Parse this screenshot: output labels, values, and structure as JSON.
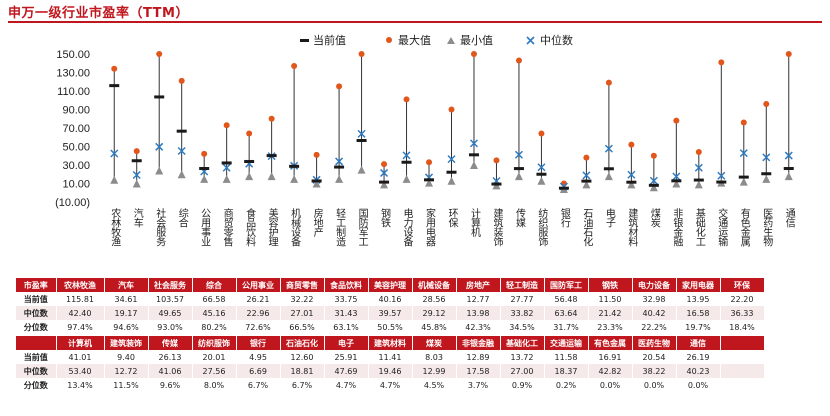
{
  "title": "申万一级行业市盈率（TTM）",
  "chart_data": {
    "type": "scatter",
    "title": "申万一级行业市盈率（TTM）",
    "legend": [
      "当前值",
      "最大值",
      "最小值",
      "中位数"
    ],
    "legend_position": "top",
    "y_ticks": [
      "150.00",
      "130.00",
      "110.00",
      "90.00",
      "70.00",
      "50.00",
      "30.00",
      "10.00",
      "(10.00)"
    ],
    "ylim": [
      -10,
      150
    ],
    "grid": false,
    "categories": [
      "农林牧渔",
      "汽车",
      "社会服务",
      "综合",
      "公用事业",
      "商贸零售",
      "食品饮料",
      "美容护理",
      "机械设备",
      "房地产",
      "轻工制造",
      "国防军工",
      "钢铁",
      "电力设备",
      "家用电器",
      "环保",
      "计算机",
      "建筑装饰",
      "传媒",
      "纺织服饰",
      "银行",
      "石油石化",
      "电子",
      "建筑材料",
      "煤炭",
      "非银金融",
      "基础化工",
      "交通运输",
      "有色金属",
      "医药生物",
      "通信"
    ],
    "series": [
      {
        "name": "当前值",
        "values": [
          115.81,
          34.61,
          103.57,
          66.58,
          26.21,
          32.22,
          33.75,
          40.16,
          28.56,
          12.77,
          27.77,
          56.48,
          11.5,
          32.98,
          13.95,
          22.2,
          41.01,
          9.4,
          26.13,
          20.01,
          4.95,
          12.6,
          25.91,
          11.41,
          8.03,
          12.89,
          13.72,
          11.58,
          16.91,
          20.54,
          26.19
        ]
      },
      {
        "name": "最大值",
        "values": [
          134,
          45,
          150,
          121,
          42,
          73,
          64,
          80,
          137,
          41,
          115,
          150,
          31,
          101,
          33,
          90,
          150,
          35,
          143,
          64,
          10,
          38,
          119,
          52,
          40,
          78,
          44,
          141,
          76,
          96,
          150
        ]
      },
      {
        "name": "最小值",
        "values": [
          14,
          10,
          24,
          20,
          15,
          15,
          18,
          18,
          15,
          10,
          15,
          25,
          9,
          15,
          11,
          13,
          30,
          8,
          18,
          13,
          4,
          9,
          18,
          9,
          6,
          10,
          9,
          11,
          12,
          15,
          18
        ]
      },
      {
        "name": "中位数",
        "values": [
          42.4,
          19.17,
          49.65,
          45.16,
          22.96,
          27.01,
          31.43,
          39.57,
          29.12,
          13.98,
          33.82,
          63.64,
          21.42,
          40.42,
          16.58,
          36.33,
          53.4,
          12.72,
          41.06,
          27.56,
          6.69,
          18.81,
          47.69,
          19.46,
          12.99,
          17.58,
          27.0,
          18.37,
          42.82,
          38.22,
          40.23
        ]
      }
    ]
  },
  "tables": [
    {
      "corner": "市盈率",
      "headers": [
        "农林牧渔",
        "汽车",
        "社会服务",
        "综合",
        "公用事业",
        "商贸零售",
        "食品饮料",
        "美容护理",
        "机械设备",
        "房地产",
        "轻工制造",
        "国防军工",
        "钢铁",
        "电力设备",
        "家用电器",
        "环保"
      ],
      "rows": [
        {
          "label": "当前值",
          "values": [
            "115.81",
            "34.61",
            "103.57",
            "66.58",
            "26.21",
            "32.22",
            "33.75",
            "40.16",
            "28.56",
            "12.77",
            "27.77",
            "56.48",
            "11.50",
            "32.98",
            "13.95",
            "22.20"
          ]
        },
        {
          "label": "中位数",
          "values": [
            "42.40",
            "19.17",
            "49.65",
            "45.16",
            "22.96",
            "27.01",
            "31.43",
            "39.57",
            "29.12",
            "13.98",
            "33.82",
            "63.64",
            "21.42",
            "40.42",
            "16.58",
            "36.33"
          ]
        },
        {
          "label": "分位数",
          "values": [
            "97.4%",
            "94.6%",
            "93.0%",
            "80.2%",
            "72.6%",
            "66.5%",
            "63.1%",
            "50.5%",
            "45.8%",
            "42.3%",
            "34.5%",
            "31.7%",
            "23.3%",
            "22.2%",
            "19.7%",
            "18.4%"
          ]
        }
      ]
    },
    {
      "corner": "",
      "headers": [
        "计算机",
        "建筑装饰",
        "传媒",
        "纺织服饰",
        "银行",
        "石油石化",
        "电子",
        "建筑材料",
        "煤炭",
        "非银金融",
        "基础化工",
        "交通运输",
        "有色金属",
        "医药生物",
        "通信",
        ""
      ],
      "rows": [
        {
          "label": "当前值",
          "values": [
            "41.01",
            "9.40",
            "26.13",
            "20.01",
            "4.95",
            "12.60",
            "25.91",
            "11.41",
            "8.03",
            "12.89",
            "13.72",
            "11.58",
            "16.91",
            "20.54",
            "26.19",
            ""
          ]
        },
        {
          "label": "中位数",
          "values": [
            "53.40",
            "12.72",
            "41.06",
            "27.56",
            "6.69",
            "18.81",
            "47.69",
            "19.46",
            "12.99",
            "17.58",
            "27.00",
            "18.37",
            "42.82",
            "38.22",
            "40.23",
            ""
          ]
        },
        {
          "label": "分位数",
          "values": [
            "13.4%",
            "11.5%",
            "9.6%",
            "8.0%",
            "6.7%",
            "6.7%",
            "4.7%",
            "4.7%",
            "4.5%",
            "3.7%",
            "0.9%",
            "0.2%",
            "0.0%",
            "0.0%",
            "0.0%",
            ""
          ]
        }
      ]
    }
  ],
  "colors": {
    "accent": "#c0161e",
    "current": "#1a1a1a",
    "max": "#e0561b",
    "min": "#8c8c8c",
    "median": "#2e7bc4",
    "stripe": "#f5e9e9"
  }
}
